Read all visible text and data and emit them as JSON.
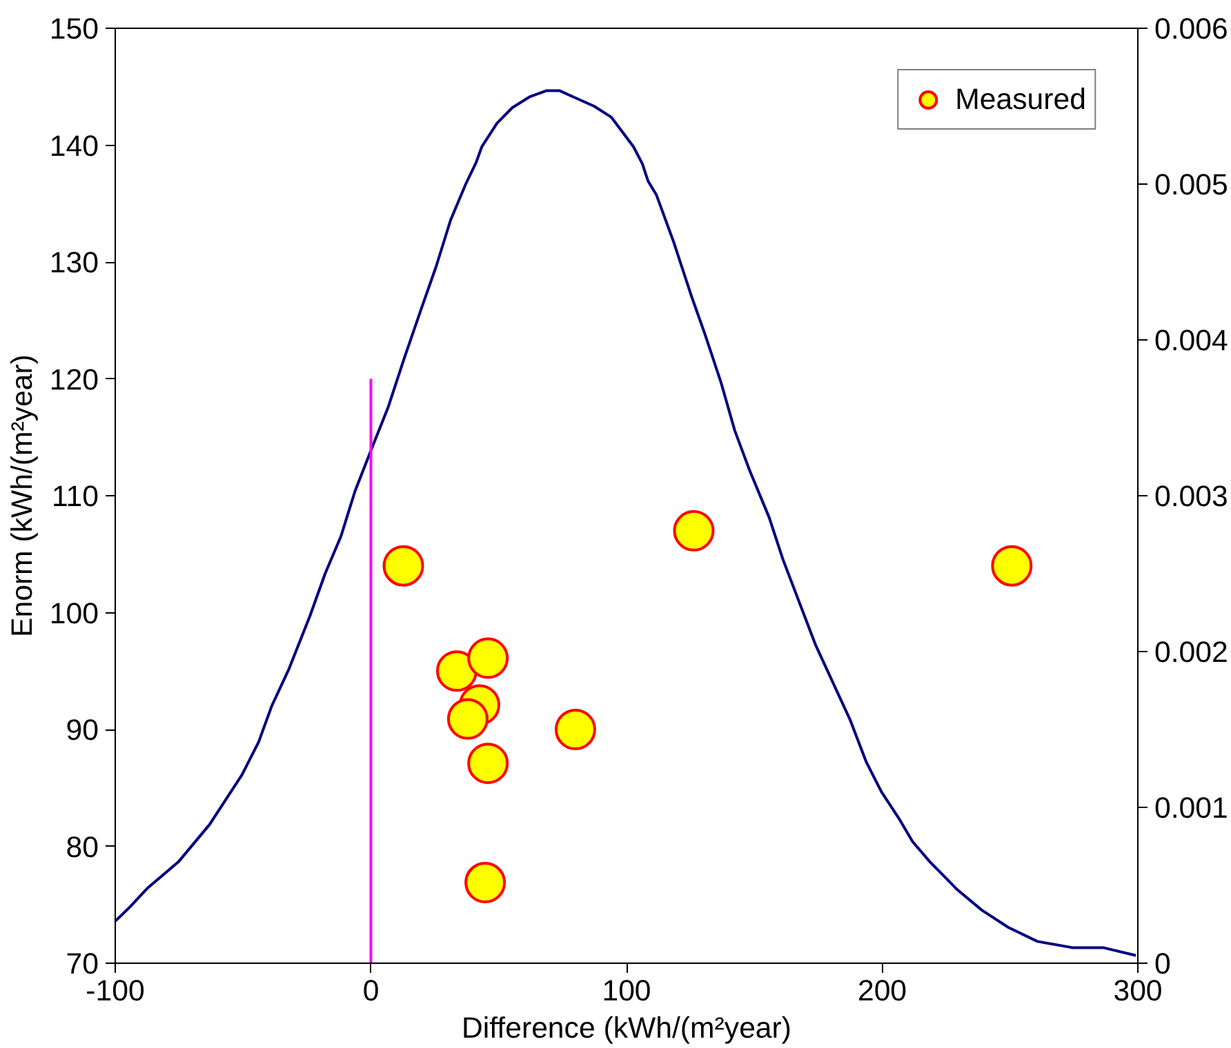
{
  "chart_data": {
    "type": "scatter",
    "xlabel": "Difference (kWh/(m²year)",
    "ylabel": "Enorm (kWh/(m²year)",
    "xlim": [
      -100,
      300
    ],
    "xticks": [
      -100,
      0,
      100,
      200,
      300
    ],
    "ylim": [
      70,
      150
    ],
    "yticks": [
      70,
      80,
      90,
      100,
      110,
      120,
      130,
      140,
      150
    ],
    "y2lim": [
      0,
      0.006
    ],
    "y2ticks": [
      0,
      0.001,
      0.002,
      0.003,
      0.004,
      0.005,
      0.006
    ],
    "grid": false,
    "legend": "top right",
    "marker": "circle",
    "series": [
      {
        "name": "Measured",
        "color": "#ffff00",
        "x": [
          12.7,
          126.3,
          250.7,
          33.6,
          45.8,
          42.5,
          37.9,
          80,
          45.8,
          44.7
        ],
        "values": [
          104,
          107,
          104,
          95,
          96.1,
          92.1,
          90.9,
          90,
          87.1,
          76.9
        ]
      },
      {
        "type": "line",
        "color": "#000080",
        "axis": "y2",
        "marker": "none",
        "x": [
          -100,
          -94.3,
          -87.5,
          -75.3,
          -63.1,
          -50.4,
          -43.9,
          -38.8,
          -32,
          -23.8,
          -17.9,
          -11.7,
          -6.2,
          0,
          6.8,
          13,
          19.5,
          25.5,
          31.2,
          37.1,
          41.2,
          43.4,
          49.3,
          55.3,
          62.1,
          68.8,
          73.7,
          80.5,
          87.3,
          94,
          102.7,
          106.2,
          108.4,
          111.7,
          118.4,
          125.2,
          130.6,
          136.9,
          142.3,
          148.2,
          155.8,
          161.2,
          174,
          187.5,
          193.8,
          199.7,
          206.5,
          211.9,
          218.7,
          229.5,
          239,
          249.3,
          260.7,
          274.3,
          286.4,
          299.2
        ],
        "values": [
          0.00027,
          0.00036,
          0.00048,
          0.00065,
          0.00089,
          0.00121,
          0.00142,
          0.00165,
          0.00189,
          0.00223,
          0.0025,
          0.00274,
          0.00303,
          0.00329,
          0.00357,
          0.00388,
          0.00419,
          0.00447,
          0.00477,
          0.005,
          0.00514,
          0.00524,
          0.00539,
          0.00549,
          0.00556,
          0.0056,
          0.0056,
          0.00555,
          0.0055,
          0.00543,
          0.00524,
          0.00513,
          0.00502,
          0.00493,
          0.00463,
          0.00429,
          0.00404,
          0.00373,
          0.00342,
          0.00316,
          0.00286,
          0.00259,
          0.00204,
          0.00156,
          0.00129,
          0.0011,
          0.00093,
          0.00078,
          0.00065,
          0.00047,
          0.00034,
          0.00023,
          0.00014,
          0.0001,
          0.0001,
          5e-05
        ]
      },
      {
        "type": "line",
        "color": "#ff00ff",
        "marker": "none",
        "x": [
          0,
          0
        ],
        "values": [
          70,
          120
        ]
      }
    ]
  }
}
